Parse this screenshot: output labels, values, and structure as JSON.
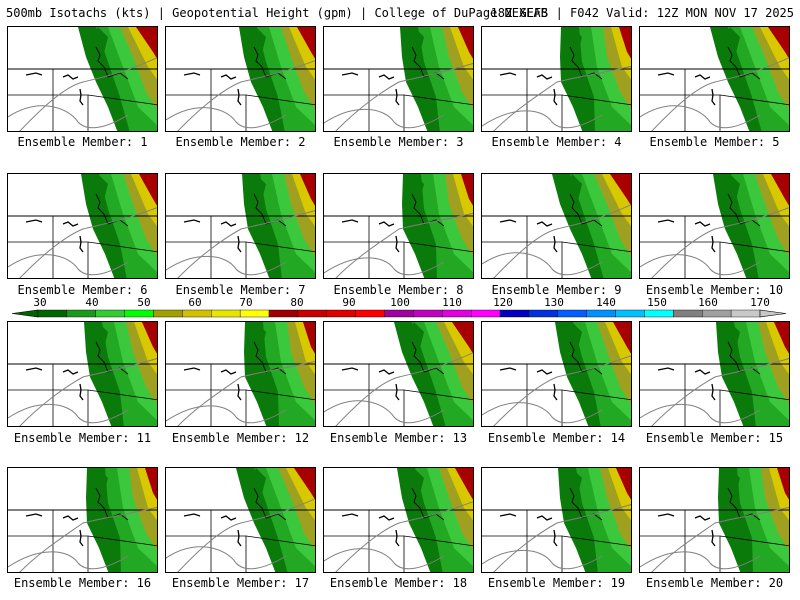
{
  "header": {
    "left": "500mb Isotachs (kts) | Geopotential Height (gpm) | College of DuPage NEXLAB",
    "right": "18Z GEFS | F042 Valid: 12Z MON NOV 17 2025"
  },
  "member_label_prefix": "Ensemble Member: ",
  "members": [
    "1",
    "2",
    "3",
    "4",
    "5",
    "6",
    "7",
    "8",
    "9",
    "10",
    "11",
    "12",
    "13",
    "14",
    "15",
    "16",
    "17",
    "18",
    "19",
    "20"
  ],
  "colorbar": {
    "labels": [
      "30",
      "40",
      "50",
      "60",
      "70",
      "80",
      "90",
      "100",
      "110",
      "120",
      "130",
      "140",
      "150",
      "160",
      "170"
    ],
    "colors": [
      "#006400",
      "#1a9a1a",
      "#33cc33",
      "#00ff00",
      "#a0a000",
      "#d4c000",
      "#e6e600",
      "#ffff00",
      "#a00000",
      "#c80000",
      "#e00000",
      "#ff0000",
      "#a000a0",
      "#c000c0",
      "#e000e0",
      "#ff00ff",
      "#0000c0",
      "#0030e0",
      "#0060ff",
      "#0090ff",
      "#00c0ff",
      "#00ffff",
      "#808080",
      "#a0a0a0",
      "#c8c8c8"
    ]
  },
  "speed_colors": {
    "dark_green": "#0a7a0a",
    "mid_green": "#22a822",
    "green": "#3cc83c",
    "bright_green": "#22ee22",
    "olive": "#a0a020",
    "gold": "#d8c800",
    "yellow": "#f0f000",
    "dark_red": "#a80000",
    "red": "#d00000"
  }
}
